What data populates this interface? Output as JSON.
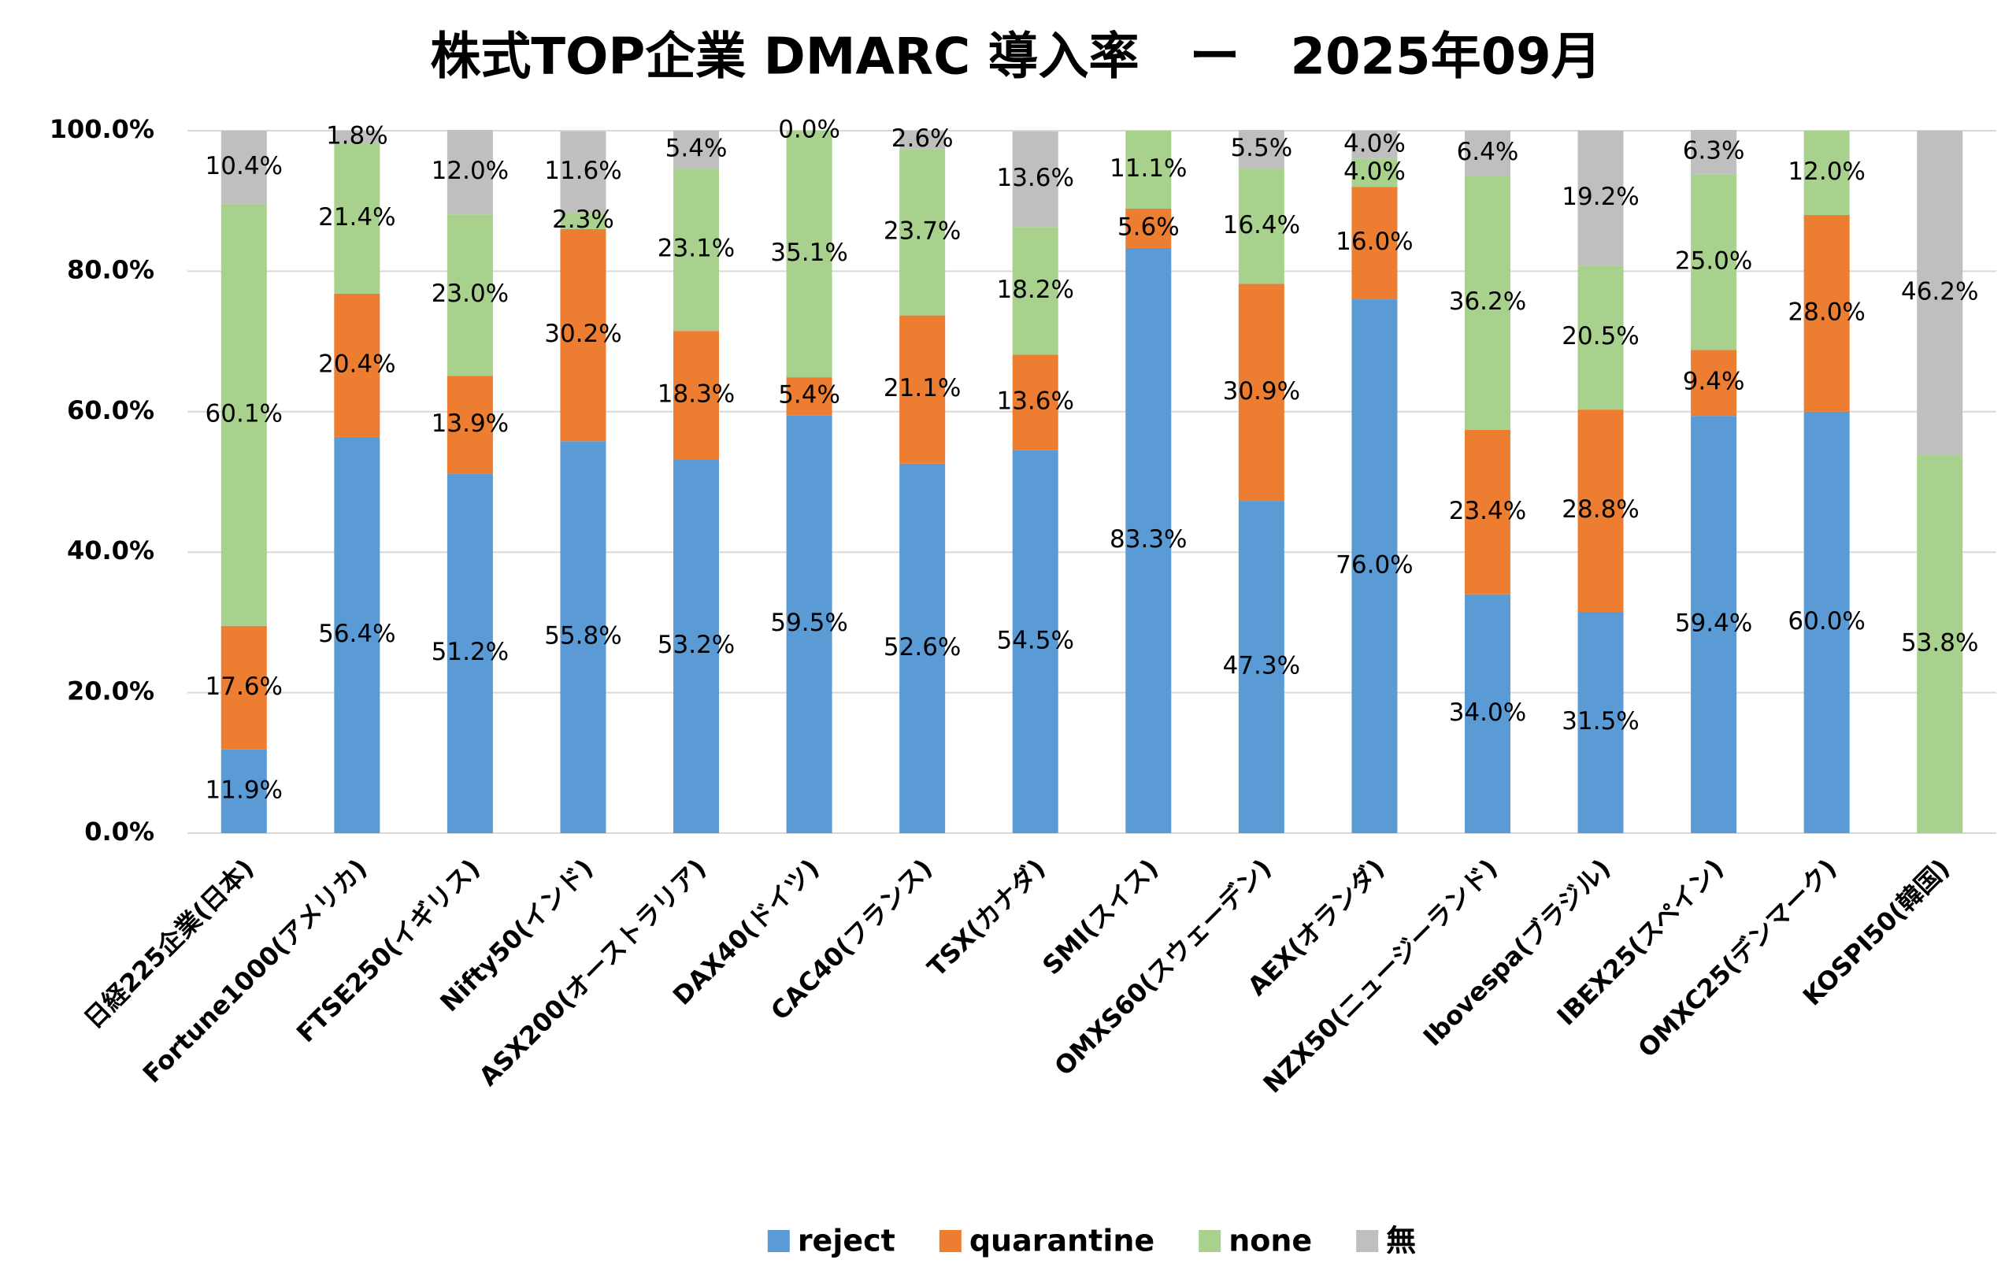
{
  "chart_data": {
    "type": "stacked-bar",
    "title": "株式TOP企業 DMARC 導入率　ー　2025年09月",
    "categories": [
      "日経225企業(日本)",
      "Fortune1000(アメリカ)",
      "FTSE250(イギリス)",
      "Nifty50(インド)",
      "ASX200(オーストラリア)",
      "DAX40(ドイツ)",
      "CAC40(フランス)",
      "TSX(カナダ)",
      "SMI(スイス)",
      "OMXS60(スウェーデン)",
      "AEX(オランダ)",
      "NZX50(ニュージーランド)",
      "Ibovespa(ブラジル)",
      "IBEX25(スペイン)",
      "OMXC25(デンマーク)",
      "KOSPI50(韓国)"
    ],
    "series": [
      {
        "name": "reject",
        "color": "#5b9bd5",
        "values": [
          11.9,
          56.4,
          51.2,
          55.8,
          53.2,
          59.5,
          52.6,
          54.5,
          83.3,
          47.3,
          76.0,
          34.0,
          31.5,
          59.4,
          60.0,
          null
        ],
        "value_labels": [
          "11.9%",
          "56.4%",
          "51.2%",
          "55.8%",
          "53.2%",
          "59.5%",
          "52.6%",
          "54.5%",
          "83.3%",
          "47.3%",
          "76.0%",
          "34.0%",
          "31.5%",
          "59.4%",
          "60.0%",
          null
        ]
      },
      {
        "name": "quarantine",
        "color": "#ed7d31",
        "values": [
          17.6,
          20.4,
          13.9,
          30.2,
          18.3,
          5.4,
          21.1,
          13.6,
          5.6,
          30.9,
          16.0,
          23.4,
          28.8,
          9.4,
          28.0,
          null
        ],
        "value_labels": [
          "17.6%",
          "20.4%",
          "13.9%",
          "30.2%",
          "18.3%",
          "5.4%",
          "21.1%",
          "13.6%",
          "5.6%",
          "30.9%",
          "16.0%",
          "23.4%",
          "28.8%",
          "9.4%",
          "28.0%",
          null
        ]
      },
      {
        "name": "none",
        "color": "#a9d18e",
        "values": [
          60.1,
          21.4,
          23.0,
          2.3,
          23.1,
          35.1,
          23.7,
          18.2,
          11.1,
          16.4,
          4.0,
          36.2,
          20.5,
          25.0,
          12.0,
          53.8
        ],
        "value_labels": [
          "60.1%",
          "21.4%",
          "23.0%",
          "2.3%",
          "23.1%",
          "35.1%",
          "23.7%",
          "18.2%",
          "11.1%",
          "16.4%",
          "4.0%",
          "36.2%",
          "20.5%",
          "25.0%",
          "12.0%",
          "53.8%"
        ]
      },
      {
        "name": "無",
        "color": "#bfbfbf",
        "values": [
          10.4,
          1.8,
          12.0,
          11.6,
          5.4,
          0.0,
          2.6,
          13.6,
          null,
          5.5,
          4.0,
          6.4,
          19.2,
          6.3,
          null,
          46.2
        ],
        "value_labels": [
          "10.4%",
          "1.8%",
          "12.0%",
          "11.6%",
          "5.4%",
          "0.0%",
          "2.6%",
          "13.6%",
          null,
          "5.5%",
          "4.0%",
          "6.4%",
          "19.2%",
          "6.3%",
          null,
          "46.2%"
        ]
      }
    ],
    "ylim": [
      0,
      100
    ],
    "yticks": [
      {
        "value": 0,
        "label": "0.0%"
      },
      {
        "value": 20,
        "label": "20.0%"
      },
      {
        "value": 40,
        "label": "40.0%"
      },
      {
        "value": 60,
        "label": "60.0%"
      },
      {
        "value": 80,
        "label": "80.0%"
      },
      {
        "value": 100,
        "label": "100.0%"
      }
    ],
    "grid": true,
    "legend": "bottom"
  }
}
